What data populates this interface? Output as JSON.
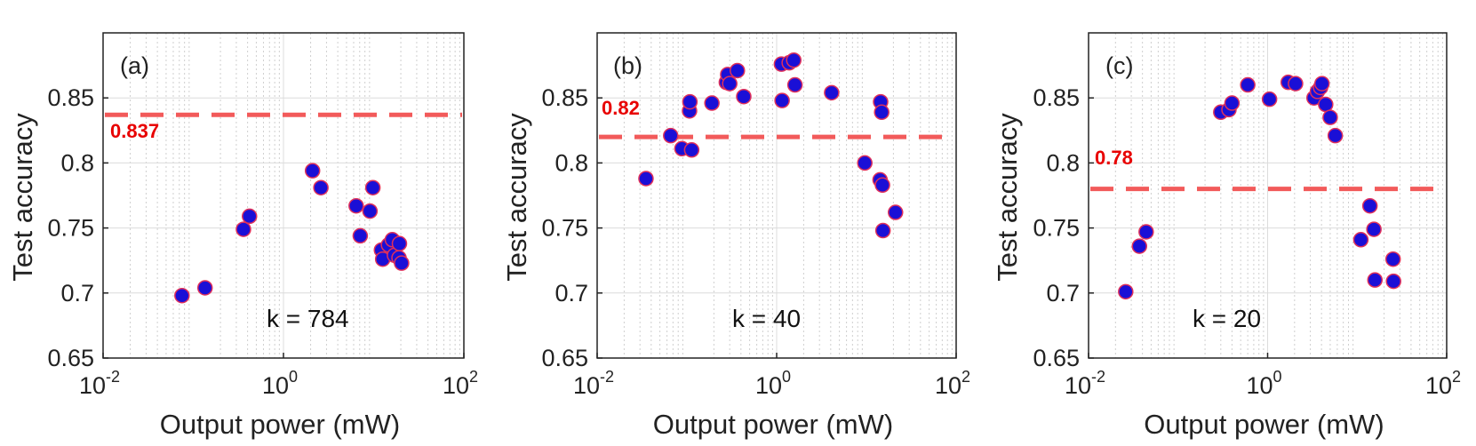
{
  "figure": {
    "shared_xlabel": "Output power (mW)",
    "shared_ylabel": "Test accuracy"
  },
  "chart_data": [
    {
      "type": "scatter",
      "panel_label": "(a)",
      "annotation": "k = 784",
      "threshold": 0.837,
      "threshold_label": "0.837",
      "xlabel": "Output power (mW)",
      "ylabel": "Test accuracy",
      "xscale": "log",
      "xlim": [
        0.01,
        100
      ],
      "ylim": [
        0.65,
        0.9
      ],
      "x_ticks": [
        {
          "base": "10",
          "exp": "-2"
        },
        {
          "base": "10",
          "exp": "0"
        },
        {
          "base": "10",
          "exp": "2"
        }
      ],
      "y_ticks": [
        "0.65",
        "0.7",
        "0.75",
        "0.8",
        "0.85"
      ],
      "grid": true,
      "points": [
        [
          0.075,
          0.698
        ],
        [
          0.135,
          0.704
        ],
        [
          0.36,
          0.749
        ],
        [
          0.42,
          0.759
        ],
        [
          2.1,
          0.794
        ],
        [
          2.6,
          0.781
        ],
        [
          6.4,
          0.767
        ],
        [
          7.1,
          0.744
        ],
        [
          9.1,
          0.763
        ],
        [
          9.8,
          0.781
        ],
        [
          12.2,
          0.733
        ],
        [
          12.6,
          0.726
        ],
        [
          14.6,
          0.737
        ],
        [
          16.1,
          0.741
        ],
        [
          17.0,
          0.729
        ],
        [
          19.1,
          0.727
        ],
        [
          19.3,
          0.738
        ],
        [
          20.4,
          0.723
        ]
      ]
    },
    {
      "type": "scatter",
      "panel_label": "(b)",
      "annotation": "k = 40",
      "threshold": 0.82,
      "threshold_label": "0.82",
      "xlabel": "Output power (mW)",
      "ylabel": "Test accuracy",
      "xscale": "log",
      "xlim": [
        0.01,
        100
      ],
      "ylim": [
        0.65,
        0.9
      ],
      "x_ticks": [
        {
          "base": "10",
          "exp": "-2"
        },
        {
          "base": "10",
          "exp": "0"
        },
        {
          "base": "10",
          "exp": "2"
        }
      ],
      "y_ticks": [
        "0.65",
        "0.7",
        "0.75",
        "0.8",
        "0.85"
      ],
      "grid": true,
      "points": [
        [
          0.035,
          0.788
        ],
        [
          0.066,
          0.821
        ],
        [
          0.088,
          0.811
        ],
        [
          0.107,
          0.84
        ],
        [
          0.108,
          0.847
        ],
        [
          0.113,
          0.81
        ],
        [
          0.19,
          0.846
        ],
        [
          0.275,
          0.862
        ],
        [
          0.285,
          0.868
        ],
        [
          0.3,
          0.861
        ],
        [
          0.365,
          0.871
        ],
        [
          0.43,
          0.851
        ],
        [
          1.13,
          0.876
        ],
        [
          1.15,
          0.848
        ],
        [
          1.38,
          0.877
        ],
        [
          1.55,
          0.879
        ],
        [
          1.6,
          0.86
        ],
        [
          4.1,
          0.854
        ],
        [
          9.6,
          0.8
        ],
        [
          14.2,
          0.787
        ],
        [
          14.4,
          0.847
        ],
        [
          14.8,
          0.839
        ],
        [
          15.1,
          0.783
        ],
        [
          15.3,
          0.748
        ],
        [
          21.1,
          0.762
        ]
      ]
    },
    {
      "type": "scatter",
      "panel_label": "(c)",
      "annotation": "k = 20",
      "threshold": 0.78,
      "threshold_label": "0.78",
      "xlabel": "Output power (mW)",
      "ylabel": "Test accuracy",
      "xscale": "log",
      "xlim": [
        0.01,
        100
      ],
      "ylim": [
        0.65,
        0.9
      ],
      "x_ticks": [
        {
          "base": "10",
          "exp": "-2"
        },
        {
          "base": "10",
          "exp": "0"
        },
        {
          "base": "10",
          "exp": "2"
        }
      ],
      "y_ticks": [
        "0.65",
        "0.7",
        "0.75",
        "0.8",
        "0.85"
      ],
      "grid": true,
      "points": [
        [
          0.026,
          0.701
        ],
        [
          0.037,
          0.736
        ],
        [
          0.044,
          0.747
        ],
        [
          0.3,
          0.839
        ],
        [
          0.37,
          0.841
        ],
        [
          0.4,
          0.846
        ],
        [
          0.6,
          0.86
        ],
        [
          1.05,
          0.849
        ],
        [
          1.7,
          0.862
        ],
        [
          2.05,
          0.861
        ],
        [
          3.3,
          0.85
        ],
        [
          3.6,
          0.855
        ],
        [
          3.9,
          0.858
        ],
        [
          4.05,
          0.861
        ],
        [
          4.45,
          0.845
        ],
        [
          5.0,
          0.835
        ],
        [
          5.7,
          0.821
        ],
        [
          11.0,
          0.741
        ],
        [
          13.9,
          0.767
        ],
        [
          15.4,
          0.749
        ],
        [
          15.8,
          0.71
        ],
        [
          25.2,
          0.726
        ],
        [
          25.5,
          0.709
        ]
      ]
    }
  ],
  "colors": {
    "marker_fill": "#1a0fd6",
    "marker_edge": "#e0305a",
    "threshold_line": "#f25a5a",
    "threshold_text": "#e80000",
    "axis": "#222222",
    "grid_major": "#dcdcdc",
    "grid_minor": "#cfcfcf"
  }
}
